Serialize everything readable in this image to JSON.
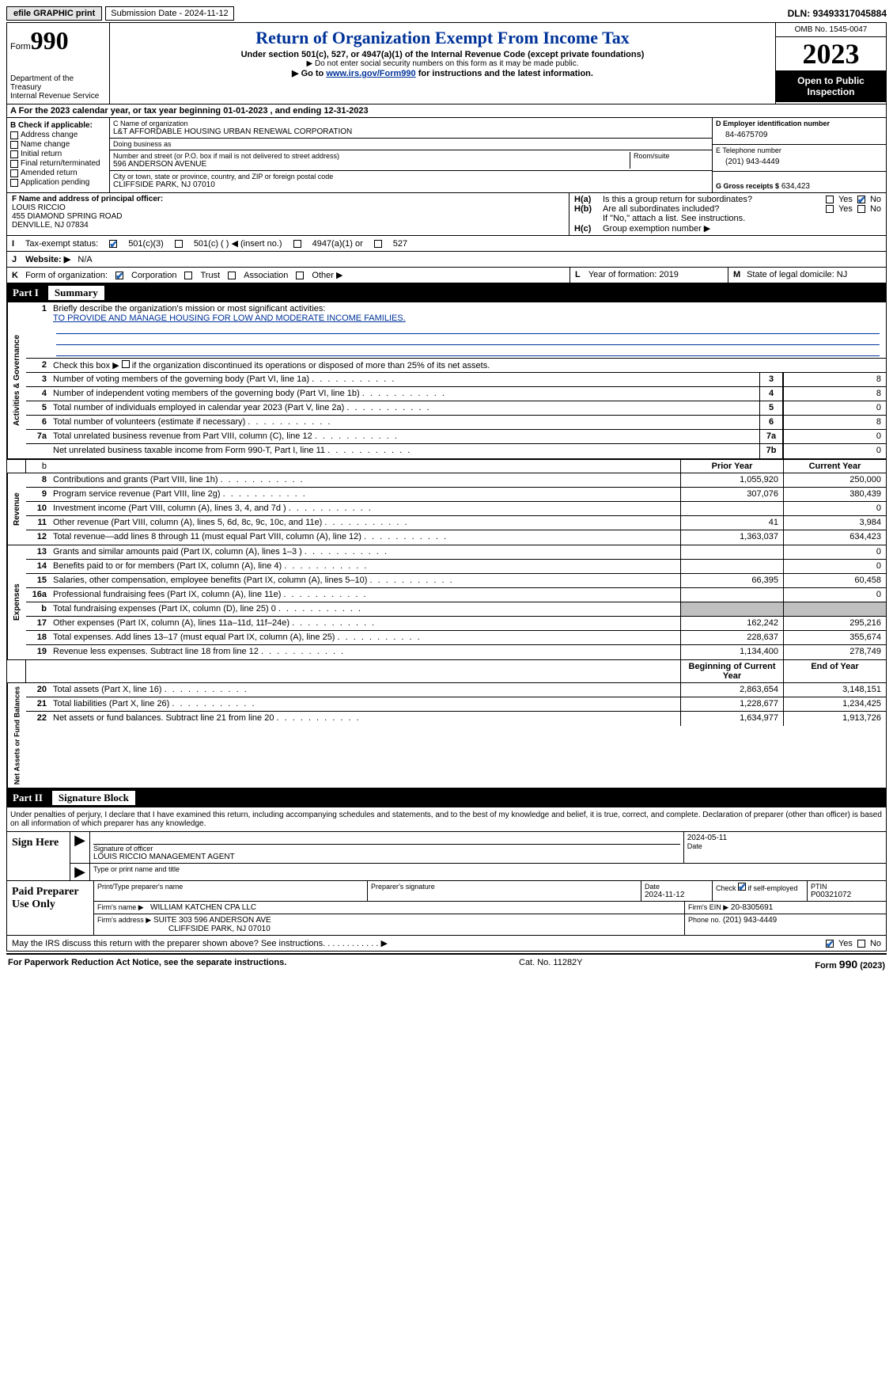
{
  "topbar": {
    "efile": "efile GRAPHIC print",
    "submission": "Submission Date - 2024-11-12",
    "dln": "DLN: 93493317045884"
  },
  "header": {
    "form_label": "Form",
    "form_no": "990",
    "dept": "Department of the Treasury\nInternal Revenue Service",
    "title": "Return of Organization Exempt From Income Tax",
    "sub1": "Under section 501(c), 527, or 4947(a)(1) of the Internal Revenue Code (except private foundations)",
    "sub2": "Do not enter social security numbers on this form as it may be made public.",
    "sub3_pre": "Go to ",
    "sub3_link": "www.irs.gov/Form990",
    "sub3_post": " for instructions and the latest information.",
    "omb": "OMB No. 1545-0047",
    "year": "2023",
    "inspect": "Open to Public Inspection"
  },
  "rowA": "A For the 2023 calendar year, or tax year beginning 01-01-2023   , and ending 12-31-2023",
  "colB": {
    "label": "B Check if applicable:",
    "items": [
      "Address change",
      "Name change",
      "Initial return",
      "Final return/terminated",
      "Amended return",
      "Application pending"
    ]
  },
  "colC": {
    "name_cap": "C Name of organization",
    "name": "L&T AFFORDABLE HOUSING URBAN RENEWAL CORPORATION",
    "dba_cap": "Doing business as",
    "dba": "",
    "street_cap": "Number and street (or P.O. box if mail is not delivered to street address)",
    "street": "596 ANDERSON AVENUE",
    "room_cap": "Room/suite",
    "city_cap": "City or town, state or province, country, and ZIP or foreign postal code",
    "city": "CLIFFSIDE PARK, NJ  07010"
  },
  "colD": {
    "ein_cap": "D Employer identification number",
    "ein": "84-4675709",
    "tel_cap": "E Telephone number",
    "tel": "(201) 943-4449",
    "gross_cap": "G Gross receipts $",
    "gross": "634,423"
  },
  "colF": {
    "cap": "F Name and address of principal officer:",
    "name": "LOUIS RICCIO",
    "addr1": "455 DIAMOND SPRING ROAD",
    "addr2": "DENVILLE, NJ  07834"
  },
  "colH": {
    "a_lab": "H(a)",
    "a_txt": "Is this a group return for subordinates?",
    "b_lab": "H(b)",
    "b_txt": "Are all subordinates included?",
    "b_note": "If \"No,\" attach a list. See instructions.",
    "c_lab": "H(c)",
    "c_txt": "Group exemption number ▶",
    "yes": "Yes",
    "no": "No"
  },
  "rowI": {
    "lab": "I",
    "txt": "Tax-exempt status:",
    "o1": "501(c)(3)",
    "o2": "501(c) (  ) ◀ (insert no.)",
    "o3": "4947(a)(1) or",
    "o4": "527"
  },
  "rowJ": {
    "lab": "J",
    "txt": "Website: ▶",
    "val": "N/A"
  },
  "rowK": {
    "lab": "K",
    "txt": "Form of organization:",
    "opts": [
      "Corporation",
      "Trust",
      "Association",
      "Other ▶"
    ],
    "l_lab": "L",
    "l_txt": "Year of formation: 2019",
    "m_lab": "M",
    "m_txt": "State of legal domicile: NJ"
  },
  "partI": {
    "title": "Part I",
    "name": "Summary"
  },
  "summary": {
    "q1_lab": "Briefly describe the organization's mission or most significant activities:",
    "q1_val": "TO PROVIDE AND MANAGE HOUSING FOR LOW AND MODERATE INCOME FAMILIES.",
    "q2": "Check this box ▶        if the organization discontinued its operations or disposed of more than 25% of its net assets.",
    "side1": "Activities & Governance",
    "side2": "Revenue",
    "side3": "Expenses",
    "side4": "Net Assets or Fund Balances",
    "hdr_prior": "Prior Year",
    "hdr_curr": "Current Year",
    "hdr_beg": "Beginning of Current Year",
    "hdr_end": "End of Year",
    "rows_gov": [
      {
        "n": "3",
        "t": "Number of voting members of the governing body (Part VI, line 1a)",
        "c": "3",
        "v": "8"
      },
      {
        "n": "4",
        "t": "Number of independent voting members of the governing body (Part VI, line 1b)",
        "c": "4",
        "v": "8"
      },
      {
        "n": "5",
        "t": "Total number of individuals employed in calendar year 2023 (Part V, line 2a)",
        "c": "5",
        "v": "0"
      },
      {
        "n": "6",
        "t": "Total number of volunteers (estimate if necessary)",
        "c": "6",
        "v": "8"
      },
      {
        "n": "7a",
        "t": "Total unrelated business revenue from Part VIII, column (C), line 12",
        "c": "7a",
        "v": "0"
      },
      {
        "n": "",
        "t": "Net unrelated business taxable income from Form 990-T, Part I, line 11",
        "c": "7b",
        "v": "0"
      }
    ],
    "rows_rev": [
      {
        "n": "8",
        "t": "Contributions and grants (Part VIII, line 1h)",
        "p": "1,055,920",
        "c": "250,000"
      },
      {
        "n": "9",
        "t": "Program service revenue (Part VIII, line 2g)",
        "p": "307,076",
        "c": "380,439"
      },
      {
        "n": "10",
        "t": "Investment income (Part VIII, column (A), lines 3, 4, and 7d )",
        "p": "",
        "c": "0"
      },
      {
        "n": "11",
        "t": "Other revenue (Part VIII, column (A), lines 5, 6d, 8c, 9c, 10c, and 11e)",
        "p": "41",
        "c": "3,984"
      },
      {
        "n": "12",
        "t": "Total revenue—add lines 8 through 11 (must equal Part VIII, column (A), line 12)",
        "p": "1,363,037",
        "c": "634,423"
      }
    ],
    "rows_exp": [
      {
        "n": "13",
        "t": "Grants and similar amounts paid (Part IX, column (A), lines 1–3 )",
        "p": "",
        "c": "0"
      },
      {
        "n": "14",
        "t": "Benefits paid to or for members (Part IX, column (A), line 4)",
        "p": "",
        "c": "0"
      },
      {
        "n": "15",
        "t": "Salaries, other compensation, employee benefits (Part IX, column (A), lines 5–10)",
        "p": "66,395",
        "c": "60,458"
      },
      {
        "n": "16a",
        "t": "Professional fundraising fees (Part IX, column (A), line 11e)",
        "p": "",
        "c": "0"
      },
      {
        "n": "b",
        "t": "Total fundraising expenses (Part IX, column (D), line 25) 0",
        "p": "grey",
        "c": "grey"
      },
      {
        "n": "17",
        "t": "Other expenses (Part IX, column (A), lines 11a–11d, 11f–24e)",
        "p": "162,242",
        "c": "295,216"
      },
      {
        "n": "18",
        "t": "Total expenses. Add lines 13–17 (must equal Part IX, column (A), line 25)",
        "p": "228,637",
        "c": "355,674"
      },
      {
        "n": "19",
        "t": "Revenue less expenses. Subtract line 18 from line 12",
        "p": "1,134,400",
        "c": "278,749"
      }
    ],
    "rows_net": [
      {
        "n": "20",
        "t": "Total assets (Part X, line 16)",
        "p": "2,863,654",
        "c": "3,148,151"
      },
      {
        "n": "21",
        "t": "Total liabilities (Part X, line 26)",
        "p": "1,228,677",
        "c": "1,234,425"
      },
      {
        "n": "22",
        "t": "Net assets or fund balances. Subtract line 21 from line 20",
        "p": "1,634,977",
        "c": "1,913,726"
      }
    ]
  },
  "partII": {
    "title": "Part II",
    "name": "Signature Block"
  },
  "sig": {
    "decl": "Under penalties of perjury, I declare that I have examined this return, including accompanying schedules and statements, and to the best of my knowledge and belief, it is true, correct, and complete. Declaration of preparer (other than officer) is based on all information of which preparer has any knowledge.",
    "sign_here": "Sign Here",
    "sig_off_cap": "Signature of officer",
    "sig_off": "LOUIS RICCIO MANAGEMENT AGENT",
    "sig_type_cap": "Type or print name and title",
    "sig_date": "2024-05-11",
    "date_cap": "Date",
    "paid": "Paid Preparer Use Only",
    "prep_name_cap": "Print/Type preparer's name",
    "prep_sig_cap": "Preparer's signature",
    "prep_date_cap": "Date",
    "prep_date": "2024-11-12",
    "prep_self_cap": "Check         if self-employed",
    "ptin_cap": "PTIN",
    "ptin": "P00321072",
    "firm_name_cap": "Firm's name    ▶",
    "firm_name": "WILLIAM KATCHEN CPA LLC",
    "firm_ein_cap": "Firm's EIN ▶",
    "firm_ein": "20-8305691",
    "firm_addr_cap": "Firm's address ▶",
    "firm_addr1": "SUITE 303 596 ANDERSON AVE",
    "firm_addr2": "CLIFFSIDE PARK, NJ  07010",
    "phone_cap": "Phone no.",
    "phone": "(201) 943-4449"
  },
  "may": {
    "txt": "May the IRS discuss this return with the preparer shown above? See instructions.",
    "yes": "Yes",
    "no": "No"
  },
  "footer": {
    "l": "For Paperwork Reduction Act Notice, see the separate instructions.",
    "m": "Cat. No. 11282Y",
    "r": "Form 990 (2023)"
  }
}
